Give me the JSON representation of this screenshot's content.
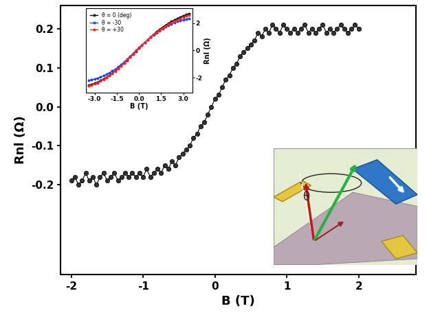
{
  "chart_data": [
    {
      "type": "line",
      "marker": "o",
      "line_style": "solid",
      "color": "#000000",
      "xlabel": "B (T)",
      "ylabel": "Rnl (Ω)",
      "annotations": [
        "θ"
      ],
      "x": [
        -2.0,
        -1.95,
        -1.9,
        -1.85,
        -1.8,
        -1.75,
        -1.7,
        -1.65,
        -1.6,
        -1.55,
        -1.5,
        -1.45,
        -1.4,
        -1.35,
        -1.3,
        -1.25,
        -1.2,
        -1.15,
        -1.1,
        -1.05,
        -1.0,
        -0.95,
        -0.9,
        -0.85,
        -0.8,
        -0.75,
        -0.7,
        -0.65,
        -0.6,
        -0.55,
        -0.5,
        -0.45,
        -0.4,
        -0.35,
        -0.3,
        -0.25,
        -0.2,
        -0.15,
        -0.1,
        -0.05,
        0.0,
        0.05,
        0.1,
        0.15,
        0.2,
        0.25,
        0.3,
        0.35,
        0.4,
        0.45,
        0.5,
        0.55,
        0.6,
        0.65,
        0.7,
        0.75,
        0.8,
        0.85,
        0.9,
        0.95,
        1.0,
        1.05,
        1.1,
        1.15,
        1.2,
        1.25,
        1.3,
        1.35,
        1.4,
        1.45,
        1.5,
        1.55,
        1.6,
        1.65,
        1.7,
        1.75,
        1.8,
        1.85,
        1.9,
        1.95,
        2.0
      ],
      "values": [
        -0.19,
        -0.18,
        -0.2,
        -0.19,
        -0.17,
        -0.19,
        -0.18,
        -0.2,
        -0.18,
        -0.17,
        -0.19,
        -0.18,
        -0.17,
        -0.19,
        -0.18,
        -0.17,
        -0.18,
        -0.17,
        -0.18,
        -0.17,
        -0.18,
        -0.16,
        -0.18,
        -0.17,
        -0.16,
        -0.17,
        -0.15,
        -0.16,
        -0.14,
        -0.15,
        -0.13,
        -0.12,
        -0.11,
        -0.1,
        -0.08,
        -0.07,
        -0.05,
        -0.04,
        -0.02,
        0.0,
        0.02,
        0.03,
        0.05,
        0.07,
        0.08,
        0.1,
        0.11,
        0.13,
        0.14,
        0.15,
        0.16,
        0.17,
        0.19,
        0.18,
        0.2,
        0.19,
        0.21,
        0.2,
        0.19,
        0.21,
        0.2,
        0.19,
        0.2,
        0.19,
        0.2,
        0.21,
        0.19,
        0.2,
        0.19,
        0.2,
        0.21,
        0.19,
        0.2,
        0.19,
        0.2,
        0.21,
        0.2,
        0.19,
        0.2,
        0.21,
        0.2
      ],
      "xlim": [
        -2.15,
        2.8
      ],
      "ylim": [
        -0.43,
        0.26
      ],
      "xticks": [
        -2,
        -1,
        0,
        1,
        2
      ],
      "yticks": [
        -0.2,
        -0.1,
        {
          "value": 0,
          "label": "0.0"
        },
        0.1,
        0.2
      ]
    },
    {
      "type": "line",
      "xlabel": "B (T)",
      "ylabel": "Rnl (Ω)",
      "legend": "upper left",
      "x": [
        -3.4,
        -3.2,
        -3.0,
        -2.8,
        -2.6,
        -2.4,
        -2.2,
        -2.0,
        -1.8,
        -1.6,
        -1.4,
        -1.2,
        -1.0,
        -0.8,
        -0.6,
        -0.4,
        -0.2,
        0.0,
        0.2,
        0.4,
        0.6,
        0.8,
        1.0,
        1.2,
        1.4,
        1.6,
        1.8,
        2.0,
        2.2,
        2.4,
        2.6,
        2.8,
        3.0,
        3.2,
        3.4
      ],
      "series": [
        {
          "name": "θ = 0 (deg)",
          "color": "#000000",
          "marker": "o",
          "values": [
            -2.55,
            -2.5,
            -2.42,
            -2.33,
            -2.22,
            -2.1,
            -1.97,
            -1.83,
            -1.67,
            -1.5,
            -1.32,
            -1.13,
            -0.93,
            -0.72,
            -0.5,
            -0.28,
            -0.06,
            0.15,
            0.37,
            0.59,
            0.8,
            1.0,
            1.2,
            1.38,
            1.55,
            1.71,
            1.86,
            2.0,
            2.12,
            2.24,
            2.35,
            2.45,
            2.54,
            2.62,
            2.7
          ]
        },
        {
          "name": "θ = -30",
          "color": "#1f3fff",
          "marker": "o",
          "values": [
            -2.2,
            -2.15,
            -2.1,
            -2.03,
            -1.95,
            -1.86,
            -1.76,
            -1.64,
            -1.51,
            -1.37,
            -1.21,
            -1.04,
            -0.85,
            -0.65,
            -0.44,
            -0.22,
            0.0,
            0.2,
            0.4,
            0.6,
            0.79,
            0.97,
            1.14,
            1.3,
            1.45,
            1.59,
            1.72,
            1.84,
            1.95,
            2.05,
            2.13,
            2.2,
            2.26,
            2.31,
            2.35
          ]
        },
        {
          "name": "θ = +30",
          "color": "#ff2020",
          "marker": "o",
          "values": [
            -2.6,
            -2.55,
            -2.47,
            -2.38,
            -2.27,
            -2.14,
            -2.0,
            -1.85,
            -1.69,
            -1.52,
            -1.33,
            -1.13,
            -0.92,
            -0.7,
            -0.48,
            -0.26,
            -0.04,
            0.17,
            0.38,
            0.6,
            0.8,
            0.99,
            1.17,
            1.34,
            1.5,
            1.65,
            1.79,
            1.92,
            2.04,
            2.15,
            2.25,
            2.35,
            2.44,
            2.52,
            2.6
          ]
        }
      ],
      "xlim": [
        -3.6,
        3.6
      ],
      "ylim": [
        -3.1,
        3.1
      ],
      "xticks": [
        {
          "value": -3,
          "label": "-3.0"
        },
        -1.5,
        {
          "value": 0,
          "label": "0.0"
        },
        1.5,
        {
          "value": 3,
          "label": "3.0"
        }
      ],
      "yticks": [
        -2,
        0,
        2
      ]
    }
  ]
}
